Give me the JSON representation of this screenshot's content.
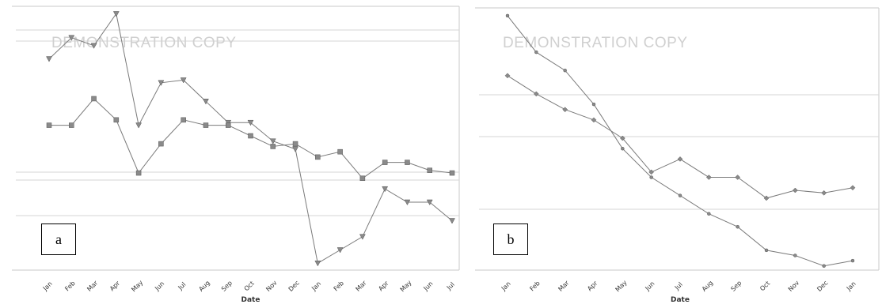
{
  "panels": [
    {
      "label": "a",
      "watermark": "DEMONSTRATION COPY",
      "xlabel": "Date"
    },
    {
      "label": "b",
      "watermark": "DEMONSTRATION COPY",
      "xlabel": "Date"
    }
  ],
  "chart_data": [
    {
      "type": "line",
      "xlabel": "Date",
      "ylim": [
        0,
        1
      ],
      "grid": true,
      "categories": [
        "Jan",
        "Feb",
        "Mar",
        "Apr",
        "May",
        "Jun",
        "Jul",
        "Aug",
        "Sep",
        "Oct",
        "Nov",
        "Dec",
        "Jan",
        "Feb",
        "Mar",
        "Apr",
        "May",
        "Jun",
        "Jul"
      ],
      "series": [
        {
          "values": [
            0.79,
            0.87,
            0.84,
            0.96,
            0.54,
            0.7,
            0.71,
            0.63,
            0.55,
            0.55,
            0.48,
            0.45,
            0.02,
            0.07,
            0.12,
            0.3,
            0.25,
            0.25,
            0.18
          ]
        },
        {
          "values": [
            0.54,
            0.54,
            0.64,
            0.56,
            0.36,
            0.47,
            0.56,
            0.54,
            0.54,
            0.5,
            0.46,
            0.47,
            0.42,
            0.44,
            0.34,
            0.4,
            0.4,
            0.37,
            0.36
          ]
        }
      ]
    },
    {
      "type": "line",
      "xlabel": "Date",
      "ylim": [
        0,
        1
      ],
      "grid": true,
      "categories": [
        "Jan",
        "Feb",
        "Mar",
        "Apr",
        "May",
        "Jun",
        "Jul",
        "Aug",
        "Sep",
        "Oct",
        "Nov",
        "Dec",
        "Jan"
      ],
      "series": [
        {
          "values": [
            0.97,
            0.83,
            0.76,
            0.63,
            0.46,
            0.35,
            0.28,
            0.21,
            0.16,
            0.07,
            0.05,
            0.01,
            0.03
          ]
        },
        {
          "values": [
            0.74,
            0.67,
            0.61,
            0.57,
            0.5,
            0.37,
            0.42,
            0.35,
            0.35,
            0.27,
            0.3,
            0.29,
            0.31
          ]
        }
      ]
    }
  ],
  "colors": {
    "line": "#7a7a7a",
    "grid": "#d6d6d6",
    "frame": "#c9c9c9"
  }
}
